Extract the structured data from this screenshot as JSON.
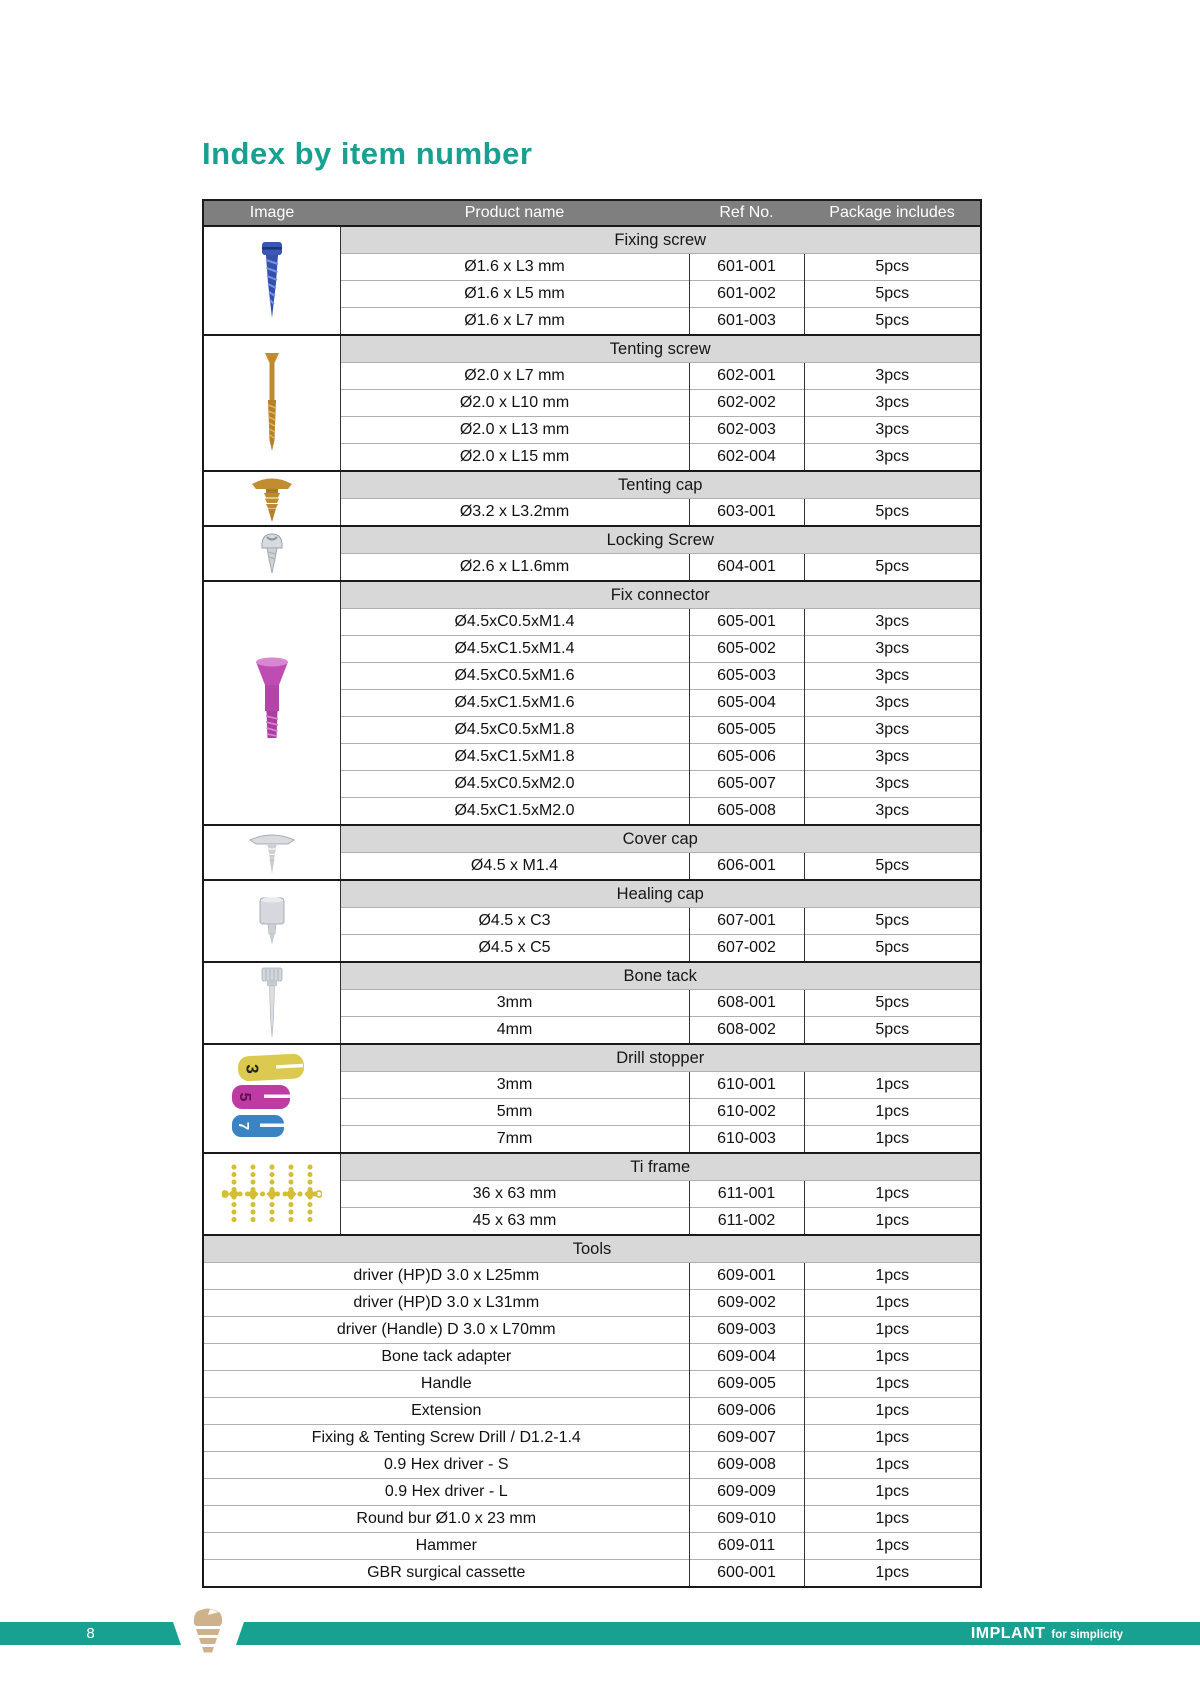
{
  "page": {
    "title": "Index by item number",
    "footer": {
      "page_number": "8",
      "brand_name": "IMPLANT",
      "brand_tagline": "for simplicity"
    },
    "colors": {
      "accent_teal": "#18a191",
      "header_bg": "#7f7f7f",
      "band_bg": "#d8d8d8"
    }
  },
  "table": {
    "columns": [
      "Image",
      "Product name",
      "Ref No.",
      "Package includes"
    ],
    "groups": [
      {
        "section": "Fixing screw",
        "image": "fixing-screw-blue",
        "rows": [
          [
            "Ø1.6 x L3 mm",
            "601-001",
            "5pcs"
          ],
          [
            "Ø1.6 x L5 mm",
            "601-002",
            "5pcs"
          ],
          [
            "Ø1.6 x L7 mm",
            "601-003",
            "5pcs"
          ]
        ]
      },
      {
        "section": "Tenting screw",
        "image": "tenting-screw-gold",
        "rows": [
          [
            "Ø2.0 x L7 mm",
            "602-001",
            "3pcs"
          ],
          [
            "Ø2.0 x L10 mm",
            "602-002",
            "3pcs"
          ],
          [
            "Ø2.0 x L13 mm",
            "602-003",
            "3pcs"
          ],
          [
            "Ø2.0 x L15 mm",
            "602-004",
            "3pcs"
          ]
        ]
      },
      {
        "section": "Tenting cap",
        "image": "tenting-cap-gold",
        "rows": [
          [
            "Ø3.2 x L3.2mm",
            "603-001",
            "5pcs"
          ]
        ]
      },
      {
        "section": "Locking Screw",
        "image": "locking-screw-silver",
        "rows": [
          [
            "Ø2.6 x L1.6mm",
            "604-001",
            "5pcs"
          ]
        ]
      },
      {
        "section": "Fix connector",
        "image": "fix-connector-pink",
        "rows": [
          [
            "Ø4.5xC0.5xM1.4",
            "605-001",
            "3pcs"
          ],
          [
            "Ø4.5xC1.5xM1.4",
            "605-002",
            "3pcs"
          ],
          [
            "Ø4.5xC0.5xM1.6",
            "605-003",
            "3pcs"
          ],
          [
            "Ø4.5xC1.5xM1.6",
            "605-004",
            "3pcs"
          ],
          [
            "Ø4.5xC0.5xM1.8",
            "605-005",
            "3pcs"
          ],
          [
            "Ø4.5xC1.5xM1.8",
            "605-006",
            "3pcs"
          ],
          [
            "Ø4.5xC0.5xM2.0",
            "605-007",
            "3pcs"
          ],
          [
            "Ø4.5xC1.5xM2.0",
            "605-008",
            "3pcs"
          ]
        ]
      },
      {
        "section": "Cover cap",
        "image": "cover-cap-silver",
        "rows": [
          [
            "Ø4.5 x M1.4",
            "606-001",
            "5pcs"
          ]
        ]
      },
      {
        "section": "Healing cap",
        "image": "healing-cap-silver",
        "rows": [
          [
            "Ø4.5 x C3",
            "607-001",
            "5pcs"
          ],
          [
            "Ø4.5 x C5",
            "607-002",
            "5pcs"
          ]
        ]
      },
      {
        "section": "Bone tack",
        "image": "bone-tack-silver",
        "rows": [
          [
            "3mm",
            "608-001",
            "5pcs"
          ],
          [
            "4mm",
            "608-002",
            "5pcs"
          ]
        ]
      },
      {
        "section": "Drill stopper",
        "image": "drill-stopper-set",
        "rows": [
          [
            "3mm",
            "610-001",
            "1pcs"
          ],
          [
            "5mm",
            "610-002",
            "1pcs"
          ],
          [
            "7mm",
            "610-003",
            "1pcs"
          ]
        ]
      },
      {
        "section": "Ti frame",
        "image": "ti-frame-yellow",
        "rows": [
          [
            "36 x 63 mm",
            "611-001",
            "1pcs"
          ],
          [
            "45 x 63 mm",
            "611-002",
            "1pcs"
          ]
        ]
      },
      {
        "section": "Tools",
        "image": null,
        "full_width": true,
        "rows": [
          [
            "driver (HP)D 3.0 x L25mm",
            "609-001",
            "1pcs"
          ],
          [
            "driver (HP)D 3.0 x L31mm",
            "609-002",
            "1pcs"
          ],
          [
            "driver (Handle) D 3.0 x L70mm",
            "609-003",
            "1pcs"
          ],
          [
            "Bone tack adapter",
            "609-004",
            "1pcs"
          ],
          [
            "Handle",
            "609-005",
            "1pcs"
          ],
          [
            "Extension",
            "609-006",
            "1pcs"
          ],
          [
            "Fixing & Tenting Screw Drill / D1.2-1.4",
            "609-007",
            "1pcs"
          ],
          [
            "0.9 Hex driver - S",
            "609-008",
            "1pcs"
          ],
          [
            "0.9 Hex driver - L",
            "609-009",
            "1pcs"
          ],
          [
            "Round bur Ø1.0 x 23 mm",
            "609-010",
            "1pcs"
          ],
          [
            "Hammer",
            "609-011",
            "1pcs"
          ],
          [
            "GBR surgical cassette",
            "600-001",
            "1pcs"
          ]
        ]
      }
    ]
  }
}
